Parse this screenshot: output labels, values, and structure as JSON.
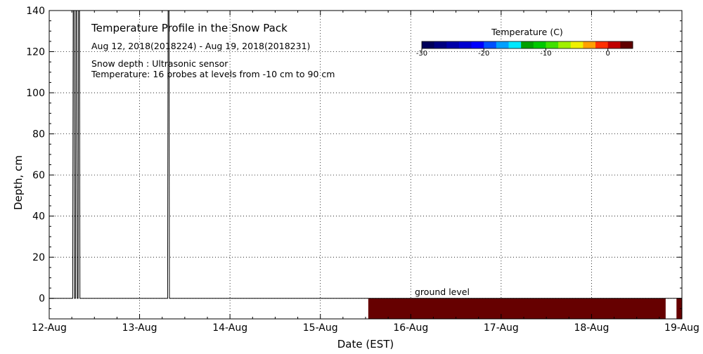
{
  "chart_data": {
    "type": "line",
    "title": "Temperature Profile in the Snow Pack",
    "subtitle": "Aug 12, 2018(2018224) - Aug 19, 2018(2018231)",
    "info_lines": [
      "Snow depth : Ultrasonic sensor",
      "Temperature: 16 probes at levels from -10 cm to 90 cm"
    ],
    "xlabel": "Date (EST)",
    "ylabel": "Depth, cm",
    "x_ticks": [
      "12-Aug",
      "13-Aug",
      "14-Aug",
      "15-Aug",
      "16-Aug",
      "17-Aug",
      "18-Aug",
      "19-Aug"
    ],
    "xlim": [
      0,
      7
    ],
    "ylim": [
      -10,
      140
    ],
    "y_ticks": [
      0,
      20,
      40,
      60,
      80,
      100,
      120,
      140
    ],
    "grid": true,
    "ground_label": "ground level",
    "snow_depth_series": {
      "name": "Snow depth",
      "x": [
        0.0,
        0.26,
        0.265,
        0.275,
        0.28,
        0.29,
        0.295,
        0.305,
        0.31,
        0.32,
        0.325,
        0.335,
        0.34,
        1.31,
        1.315,
        1.325,
        1.33,
        7.0
      ],
      "y": [
        0,
        0,
        140,
        140,
        0,
        0,
        140,
        140,
        0,
        0,
        140,
        140,
        0,
        0,
        140,
        140,
        0,
        0
      ]
    },
    "temperature_band": {
      "depth_range": [
        -10,
        0
      ],
      "x_start": 3.53,
      "x_end": 7.0,
      "gap": [
        6.82,
        6.94
      ],
      "color": "#660000",
      "approx_temperature_C": 2
    },
    "colorbar": {
      "title": "Temperature (C)",
      "ticks": [
        -30,
        -20,
        -10,
        0
      ],
      "range": [
        -30,
        4
      ],
      "colors": [
        "#00005a",
        "#000080",
        "#0000a8",
        "#0000d0",
        "#0000ff",
        "#0050ff",
        "#00a0ff",
        "#00e8ff",
        "#00a000",
        "#00c800",
        "#40e000",
        "#a0f000",
        "#f0f000",
        "#ffa000",
        "#ff3000",
        "#c00000",
        "#600000"
      ]
    }
  }
}
